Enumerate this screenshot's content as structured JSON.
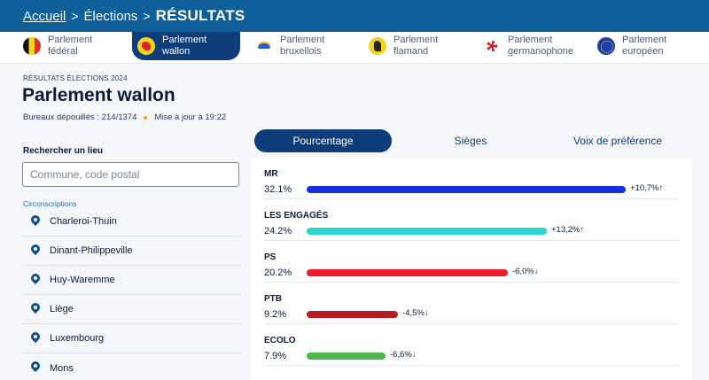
{
  "breadcrumb": {
    "home": "Accueil",
    "elections": "Élections",
    "current": "RÉSULTATS"
  },
  "parliaments": [
    {
      "label": "Parlement\nfédéral",
      "icon": "belgium-flag-icon",
      "active": false
    },
    {
      "label": "Parlement\nwallon",
      "icon": "wallonia-rooster-icon",
      "active": true
    },
    {
      "label": "Parlement\nbruxellois",
      "icon": "brussels-iris-icon",
      "active": false
    },
    {
      "label": "Parlement\nflamand",
      "icon": "flanders-lion-icon",
      "active": false
    },
    {
      "label": "Parlement\ngermanophone",
      "icon": "german-community-icon",
      "active": false
    },
    {
      "label": "Parlement\neuropéen",
      "icon": "eu-stars-icon",
      "active": false
    }
  ],
  "header": {
    "kicker": "RÉSULTATS ÉLECTIONS 2024",
    "title": "Parlement wallon",
    "bureaux": "Bureaux dépouillés : 214/1374",
    "updated": "Mise à jour à 19:22"
  },
  "search": {
    "label": "Rechercher un lieu",
    "placeholder": "Commune, code postal"
  },
  "circonscriptions": {
    "title": "Circonscriptions",
    "items": [
      "Charleroi-Thuin",
      "Dinant-Philippeville",
      "Huy-Waremme",
      "Liège",
      "Luxembourg",
      "Mons"
    ]
  },
  "view_tabs": [
    {
      "label": "Pourcentage",
      "active": true
    },
    {
      "label": "Sièges",
      "active": false
    },
    {
      "label": "Voix de préférence",
      "active": false
    }
  ],
  "results": [
    {
      "party": "MR",
      "pct_label": "32.1%",
      "value": 32.1,
      "delta": "+10,7%",
      "trend": "↑",
      "color": "#1230e6"
    },
    {
      "party": "LES ENGAGÉS",
      "pct_label": "24.2%",
      "value": 24.2,
      "delta": "+13,2%",
      "trend": "↑",
      "color": "#2fd6d0"
    },
    {
      "party": "PS",
      "pct_label": "20.2%",
      "value": 20.2,
      "delta": "-6,0%",
      "trend": "↓",
      "color": "#f01a2e"
    },
    {
      "party": "PTB",
      "pct_label": "9.2%",
      "value": 9.2,
      "delta": "-4,5%",
      "trend": "↓",
      "color": "#b51f24"
    },
    {
      "party": "ECOLO",
      "pct_label": "7.9%",
      "value": 7.9,
      "delta": "-6,6%",
      "trend": "↓",
      "color": "#4fb84a"
    }
  ]
}
